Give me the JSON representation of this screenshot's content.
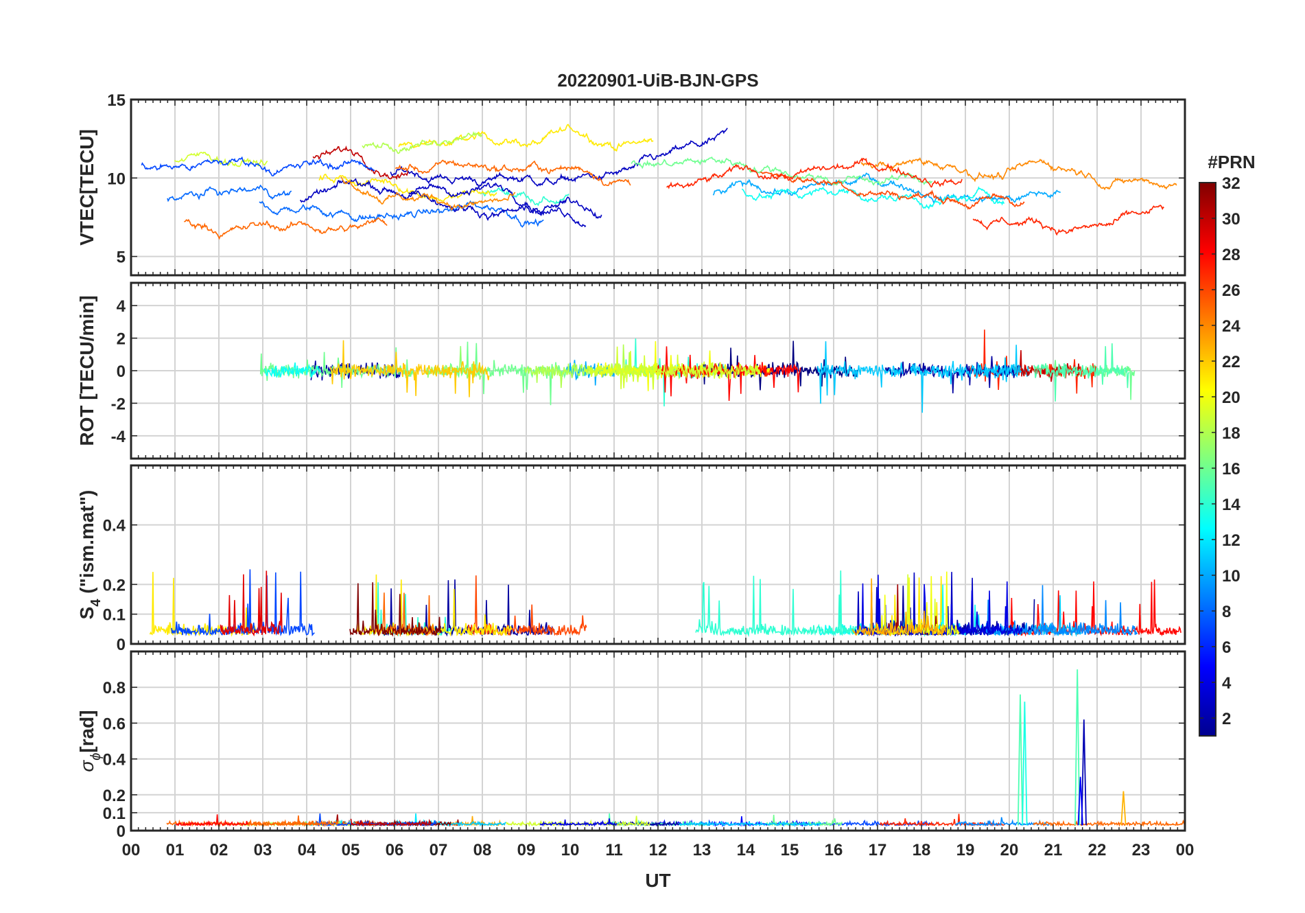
{
  "title": "20220901-UiB-BJN-GPS",
  "colorbar": {
    "label": "#PRN",
    "range": [
      1,
      32
    ],
    "ticks": [
      2,
      4,
      6,
      8,
      10,
      12,
      14,
      16,
      18,
      20,
      22,
      24,
      26,
      28,
      30,
      32
    ],
    "tick_labels": [
      "2",
      "4",
      "6",
      "8",
      "10",
      "12",
      "14",
      "16",
      "18",
      "20",
      "22",
      "24",
      "26",
      "28",
      "30",
      "32"
    ],
    "colormap": "jet"
  },
  "x_axis": {
    "label": "UT",
    "range": [
      0,
      24
    ],
    "ticks": [
      0,
      1,
      2,
      3,
      4,
      5,
      6,
      7,
      8,
      9,
      10,
      11,
      12,
      13,
      14,
      15,
      16,
      17,
      18,
      19,
      20,
      21,
      22,
      23,
      24
    ],
    "tick_labels": [
      "00",
      "01",
      "02",
      "03",
      "04",
      "05",
      "06",
      "07",
      "08",
      "09",
      "10",
      "11",
      "12",
      "13",
      "14",
      "15",
      "16",
      "17",
      "18",
      "19",
      "20",
      "21",
      "22",
      "23",
      "00"
    ]
  },
  "chart_data": [
    {
      "type": "line",
      "ylabel": "VTEC[TECU]",
      "ylim": [
        3.8,
        15
      ],
      "yticks": [
        5,
        10,
        15
      ],
      "ytick_labels": [
        "5",
        "10",
        "15"
      ],
      "grid": true,
      "series_color_by": "PRN (1-32)"
    },
    {
      "type": "line",
      "ylabel": "ROT [TECU/min]",
      "ylim": [
        -5.4,
        5.4
      ],
      "yticks": [
        -4,
        -2,
        0,
        2,
        4
      ],
      "ytick_labels": [
        "-4",
        "-2",
        "0",
        "2",
        "4"
      ],
      "grid": true,
      "series_color_by": "PRN (1-32)"
    },
    {
      "type": "line",
      "ylabel_main": "S",
      "ylabel_sub": "4",
      "ylabel_rest": " (\"ism.mat\")",
      "ylim": [
        0,
        0.6
      ],
      "yticks": [
        0,
        0.1,
        0.2,
        0.4
      ],
      "ytick_labels": [
        "0",
        "0.1",
        "0.2",
        "0.4"
      ],
      "grid": true,
      "series_color_by": "PRN (1-32)"
    },
    {
      "type": "line",
      "ylabel_sigma": "σ",
      "ylabel_sub": "ϕ",
      "ylabel_rest": "[rad]",
      "ylim": [
        0,
        1
      ],
      "yticks": [
        0,
        0.1,
        0.2,
        0.4,
        0.6,
        0.8
      ],
      "ytick_labels": [
        "0",
        "0.1",
        "0.2",
        "0.4",
        "0.6",
        "0.8"
      ],
      "grid": true,
      "series_color_by": "PRN (1-32)"
    }
  ]
}
